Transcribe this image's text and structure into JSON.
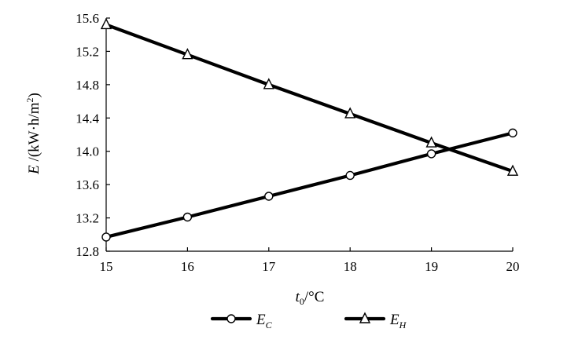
{
  "chart_data": {
    "type": "line",
    "x": [
      15,
      16,
      17,
      18,
      19,
      20
    ],
    "xlim": [
      15,
      20
    ],
    "ylim": [
      12.8,
      15.6
    ],
    "x_ticks": [
      "15",
      "16",
      "17",
      "18",
      "19",
      "20"
    ],
    "y_ticks": [
      "12.8",
      "13.2",
      "13.6",
      "14.0",
      "14.4",
      "14.8",
      "15.2",
      "15.6"
    ],
    "xlabel": {
      "var": "t",
      "sub": "0",
      "unit": "/°C"
    },
    "ylabel": {
      "var": "E",
      "unit": " /(kW·h/m",
      "sup": "2",
      "close": ")"
    },
    "grid": false,
    "legend_position": "bottom",
    "series": [
      {
        "name": "E",
        "sub": "C",
        "marker": "circle",
        "values": [
          12.97,
          13.21,
          13.46,
          13.71,
          13.97,
          14.22
        ]
      },
      {
        "name": "E",
        "sub": "H",
        "marker": "triangle",
        "values": [
          15.52,
          15.16,
          14.8,
          14.45,
          14.1,
          13.76
        ]
      }
    ]
  }
}
